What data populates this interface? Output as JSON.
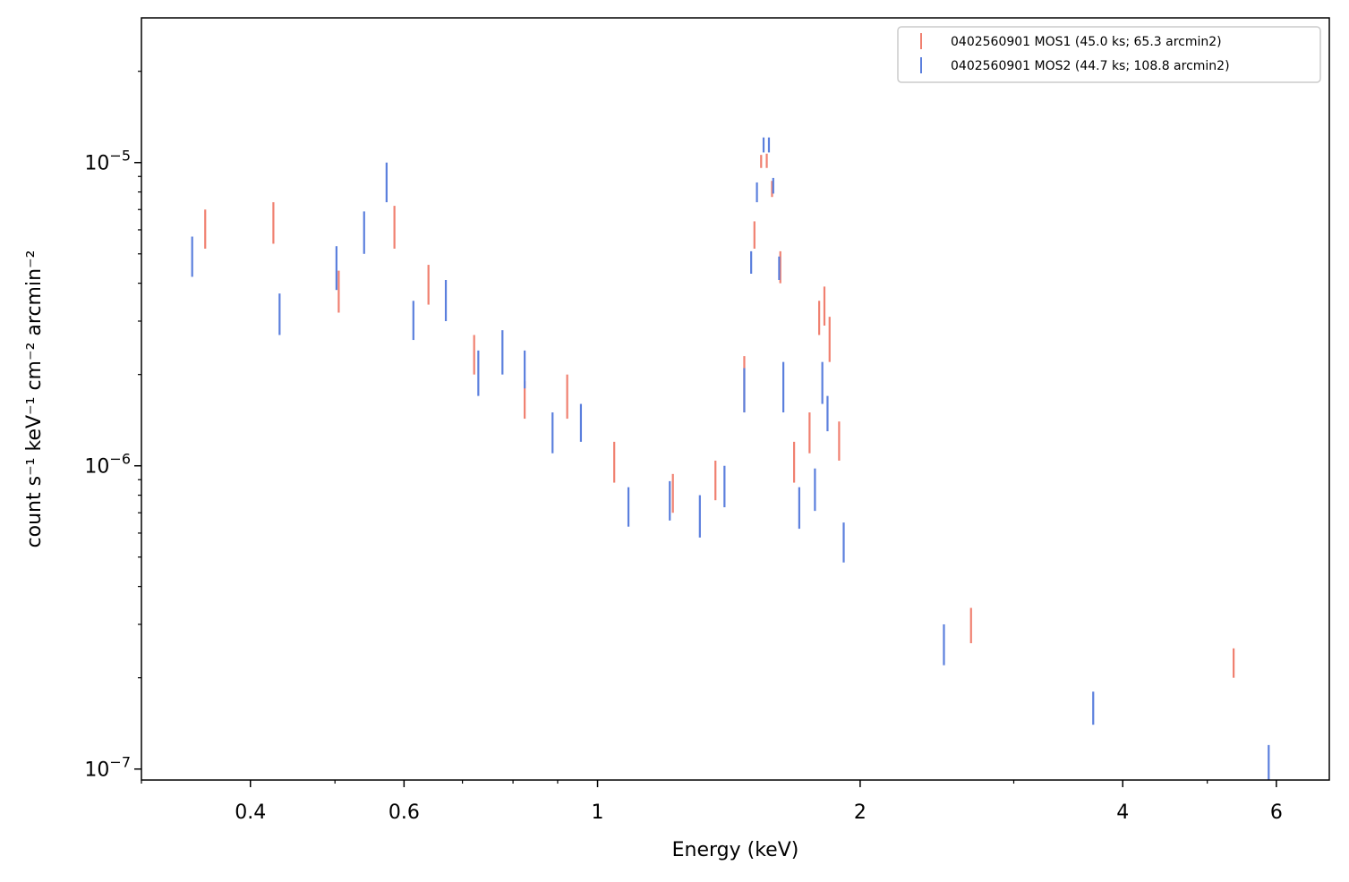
{
  "chart_data": {
    "type": "scatter",
    "title": "",
    "xlabel": "Energy (keV)",
    "ylabel": "count s⁻¹ keV⁻¹ cm⁻² arcmin⁻²",
    "xscale": "log",
    "yscale": "log",
    "xlim": [
      0.3,
      6.9
    ],
    "ylim": [
      9.2e-08,
      3e-05
    ],
    "x_ticks": [
      {
        "value": 0.4,
        "label": "0.4"
      },
      {
        "value": 0.6,
        "label": "0.6"
      },
      {
        "value": 1,
        "label": "1"
      },
      {
        "value": 2,
        "label": "2"
      },
      {
        "value": 4,
        "label": "4"
      },
      {
        "value": 6,
        "label": "6"
      }
    ],
    "y_ticks": [
      {
        "value": 1e-07,
        "base": "10",
        "exp": "−7"
      },
      {
        "value": 1e-06,
        "base": "10",
        "exp": "−6"
      },
      {
        "value": 1e-05,
        "base": "10",
        "exp": "−5"
      }
    ],
    "legend_position": "top-right",
    "grid": false,
    "series": [
      {
        "name": "0402560901 MOS1 (45.0 ks; 65.3 arcmin2)",
        "color": "#f08070",
        "points": [
          {
            "x": 0.355,
            "lo": 5.2e-06,
            "hi": 7e-06
          },
          {
            "x": 0.425,
            "lo": 5.4e-06,
            "hi": 7.4e-06
          },
          {
            "x": 0.505,
            "lo": 3.2e-06,
            "hi": 4.4e-06
          },
          {
            "x": 0.585,
            "lo": 5.2e-06,
            "hi": 7.2e-06
          },
          {
            "x": 0.64,
            "lo": 3.4e-06,
            "hi": 4.6e-06
          },
          {
            "x": 0.722,
            "lo": 2e-06,
            "hi": 2.7e-06
          },
          {
            "x": 0.825,
            "lo": 1.43e-06,
            "hi": 1.9e-06
          },
          {
            "x": 0.923,
            "lo": 1.43e-06,
            "hi": 2e-06
          },
          {
            "x": 1.045,
            "lo": 8.8e-07,
            "hi": 1.2e-06
          },
          {
            "x": 1.22,
            "lo": 7e-07,
            "hi": 9.4e-07
          },
          {
            "x": 1.365,
            "lo": 7.7e-07,
            "hi": 1.04e-06
          },
          {
            "x": 1.473,
            "lo": 1.5e-06,
            "hi": 2.3e-06
          },
          {
            "x": 1.513,
            "lo": 5.2e-06,
            "hi": 6.4e-06
          },
          {
            "x": 1.54,
            "lo": 9.6e-06,
            "hi": 1.06e-05
          },
          {
            "x": 1.563,
            "lo": 9.6e-06,
            "hi": 1.07e-05
          },
          {
            "x": 1.585,
            "lo": 7.7e-06,
            "hi": 8.7e-06
          },
          {
            "x": 1.62,
            "lo": 4e-06,
            "hi": 5.1e-06
          },
          {
            "x": 1.68,
            "lo": 8.8e-07,
            "hi": 1.2e-06
          },
          {
            "x": 1.75,
            "lo": 1.1e-06,
            "hi": 1.5e-06
          },
          {
            "x": 1.795,
            "lo": 2.7e-06,
            "hi": 3.5e-06
          },
          {
            "x": 1.82,
            "lo": 2.9e-06,
            "hi": 3.9e-06
          },
          {
            "x": 1.845,
            "lo": 2.2e-06,
            "hi": 3.1e-06
          },
          {
            "x": 1.892,
            "lo": 1.04e-06,
            "hi": 1.4e-06
          },
          {
            "x": 2.68,
            "lo": 2.6e-07,
            "hi": 3.4e-07
          },
          {
            "x": 5.36,
            "lo": 2e-07,
            "hi": 2.5e-07
          }
        ]
      },
      {
        "name": "0402560901 MOS2 (44.7 ks; 108.8 arcmin2)",
        "color": "#5b7fdd",
        "points": [
          {
            "x": 0.343,
            "lo": 4.2e-06,
            "hi": 5.7e-06
          },
          {
            "x": 0.432,
            "lo": 2.7e-06,
            "hi": 3.7e-06
          },
          {
            "x": 0.502,
            "lo": 3.8e-06,
            "hi": 5.3e-06
          },
          {
            "x": 0.54,
            "lo": 5e-06,
            "hi": 6.9e-06
          },
          {
            "x": 0.573,
            "lo": 7.4e-06,
            "hi": 1e-05
          },
          {
            "x": 0.615,
            "lo": 2.6e-06,
            "hi": 3.5e-06
          },
          {
            "x": 0.67,
            "lo": 3e-06,
            "hi": 4.1e-06
          },
          {
            "x": 0.73,
            "lo": 1.7e-06,
            "hi": 2.4e-06
          },
          {
            "x": 0.778,
            "lo": 2e-06,
            "hi": 2.8e-06
          },
          {
            "x": 0.825,
            "lo": 1.8e-06,
            "hi": 2.4e-06
          },
          {
            "x": 0.888,
            "lo": 1.1e-06,
            "hi": 1.5e-06
          },
          {
            "x": 0.957,
            "lo": 1.2e-06,
            "hi": 1.6e-06
          },
          {
            "x": 1.085,
            "lo": 6.3e-07,
            "hi": 8.5e-07
          },
          {
            "x": 1.21,
            "lo": 6.6e-07,
            "hi": 8.9e-07
          },
          {
            "x": 1.31,
            "lo": 5.8e-07,
            "hi": 8e-07
          },
          {
            "x": 1.398,
            "lo": 7.3e-07,
            "hi": 1e-06
          },
          {
            "x": 1.473,
            "lo": 1.5e-06,
            "hi": 2.1e-06
          },
          {
            "x": 1.5,
            "lo": 4.3e-06,
            "hi": 5.1e-06
          },
          {
            "x": 1.523,
            "lo": 7.4e-06,
            "hi": 8.6e-06
          },
          {
            "x": 1.55,
            "lo": 1.08e-05,
            "hi": 1.21e-05
          },
          {
            "x": 1.572,
            "lo": 1.08e-05,
            "hi": 1.21e-05
          },
          {
            "x": 1.59,
            "lo": 7.9e-06,
            "hi": 8.9e-06
          },
          {
            "x": 1.615,
            "lo": 4.1e-06,
            "hi": 4.9e-06
          },
          {
            "x": 1.633,
            "lo": 1.5e-06,
            "hi": 2.2e-06
          },
          {
            "x": 1.703,
            "lo": 6.2e-07,
            "hi": 8.5e-07
          },
          {
            "x": 1.775,
            "lo": 7.1e-07,
            "hi": 9.8e-07
          },
          {
            "x": 1.81,
            "lo": 1.6e-06,
            "hi": 2.2e-06
          },
          {
            "x": 1.835,
            "lo": 1.3e-06,
            "hi": 1.7e-06
          },
          {
            "x": 1.915,
            "lo": 4.8e-07,
            "hi": 6.5e-07
          },
          {
            "x": 2.495,
            "lo": 2.2e-07,
            "hi": 3e-07
          },
          {
            "x": 3.7,
            "lo": 1.4e-07,
            "hi": 1.8e-07
          },
          {
            "x": 5.88,
            "lo": 9e-08,
            "hi": 1.2e-07
          }
        ]
      }
    ]
  }
}
